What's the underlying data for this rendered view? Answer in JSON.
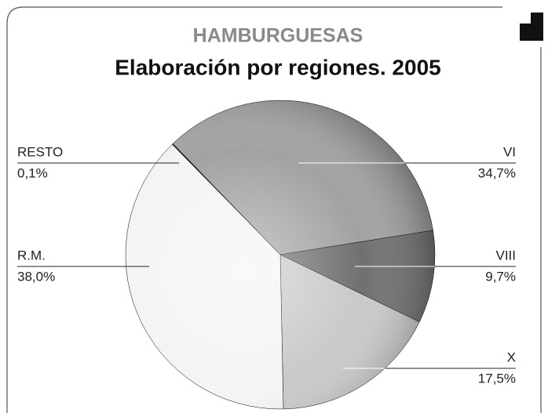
{
  "chart_data": {
    "type": "pie",
    "title": "HAMBURGUESAS",
    "subtitle": "Elaboración por regiones. 2005",
    "categories": [
      "VI",
      "VIII",
      "X",
      "R.M.",
      "RESTO"
    ],
    "values": [
      34.7,
      9.7,
      17.5,
      38.0,
      0.1
    ],
    "value_labels": [
      "34,7%",
      "9,7%",
      "17,5%",
      "38,0%",
      "0,1%"
    ],
    "colors": [
      "#a2a2a2",
      "#707070",
      "#c9c9c9",
      "#f4f4f4",
      "#1a1a1a"
    ]
  }
}
